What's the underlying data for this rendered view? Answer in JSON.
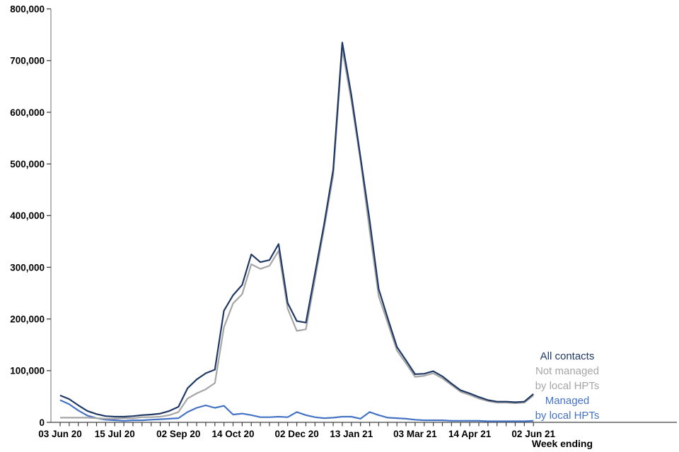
{
  "chart_data": {
    "type": "line",
    "title": "",
    "xlabel": "Week ending",
    "ylabel": "",
    "ylim": [
      0,
      800000
    ],
    "ytick_interval": 100000,
    "ytick_labels": [
      "0",
      "100,000",
      "200,000",
      "300,000",
      "400,000",
      "500,000",
      "600,000",
      "700,000",
      "800,000"
    ],
    "grid": false,
    "legend_position": "inside-right",
    "n_points": 53,
    "x_unit": "weekly ticks from 03 Jun 20 to 02 Jun 21",
    "xtick_labels": [
      {
        "i": 0,
        "label": "03 Jun 20"
      },
      {
        "i": 6,
        "label": "15 Jul 20"
      },
      {
        "i": 13,
        "label": "02 Sep 20"
      },
      {
        "i": 19,
        "label": "14 Oct 20"
      },
      {
        "i": 26,
        "label": "02 Dec 20"
      },
      {
        "i": 32,
        "label": "13 Jan 21"
      },
      {
        "i": 39,
        "label": "03 Mar 21"
      },
      {
        "i": 45,
        "label": "14 Apr 21"
      },
      {
        "i": 52,
        "label": "02 Jun 21"
      }
    ],
    "series": [
      {
        "name": "All contacts",
        "color": "#1f3864",
        "values": [
          52000,
          45000,
          33000,
          22000,
          16000,
          12000,
          11000,
          11000,
          12000,
          14000,
          15000,
          17000,
          22000,
          30000,
          66000,
          83000,
          95000,
          102000,
          216000,
          246000,
          266000,
          325000,
          310000,
          314000,
          345000,
          231000,
          196000,
          193000,
          288000,
          383000,
          489000,
          735000,
          633000,
          513000,
          391000,
          258000,
          201000,
          146000,
          120000,
          93000,
          94000,
          99000,
          89000,
          75000,
          62000,
          56000,
          49000,
          43000,
          40000,
          40000,
          39000,
          40000,
          55000
        ]
      },
      {
        "name": "Not managed by local HPTs",
        "color": "#a6a6a6",
        "values": [
          9000,
          9000,
          9000,
          9000,
          8000,
          7000,
          7000,
          8000,
          8000,
          10000,
          10000,
          11000,
          14000,
          20000,
          46000,
          56000,
          64000,
          76000,
          184000,
          230000,
          248000,
          306000,
          297000,
          303000,
          332000,
          220000,
          177000,
          180000,
          277000,
          375000,
          478000,
          722000,
          622000,
          506000,
          371000,
          244000,
          192000,
          139000,
          114000,
          88000,
          90000,
          95000,
          85000,
          72000,
          59000,
          53000,
          46000,
          41000,
          38000,
          38000,
          37000,
          38000,
          52000
        ]
      },
      {
        "name": "Managed by local HPTs",
        "color": "#4472c4",
        "values": [
          43000,
          35000,
          23000,
          13000,
          8000,
          5000,
          4000,
          3000,
          4000,
          4000,
          5000,
          6000,
          7000,
          8000,
          20000,
          28000,
          33000,
          28000,
          32000,
          15000,
          17000,
          14000,
          10000,
          10000,
          11000,
          10000,
          20000,
          14000,
          10000,
          8000,
          9000,
          11000,
          11000,
          7000,
          20000,
          14000,
          9000,
          8000,
          7000,
          5000,
          4000,
          4000,
          4000,
          3000,
          3000,
          3000,
          3000,
          2000,
          2000,
          2000,
          2000,
          2000,
          3000
        ]
      }
    ]
  },
  "legend": {
    "all_contacts": "All contacts",
    "not_managed_line1": "Not managed",
    "not_managed_line2": "by local HPTs",
    "managed_line1": "Managed",
    "managed_line2": "by local HPTs"
  },
  "axis": {
    "x_title": "Week ending"
  },
  "colors": {
    "all_contacts": "#1f3864",
    "not_managed": "#a6a6a6",
    "managed": "#4472c4",
    "axis_line": "#8f8f8f",
    "tick": "#404040",
    "label_text": "#000000",
    "background": "#ffffff"
  }
}
